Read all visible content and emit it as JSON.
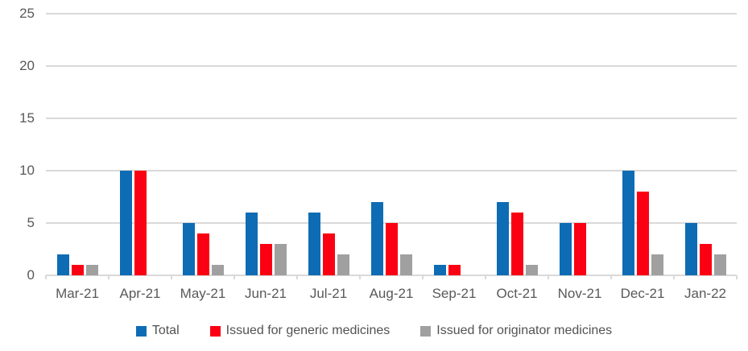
{
  "chart_data": {
    "type": "bar",
    "title": "",
    "xlabel": "",
    "ylabel": "",
    "categories": [
      "Mar-21",
      "Apr-21",
      "May-21",
      "Jun-21",
      "Jul-21",
      "Aug-21",
      "Sep-21",
      "Oct-21",
      "Nov-21",
      "Dec-21",
      "Jan-22"
    ],
    "series": [
      {
        "name": "Total",
        "color": "#0e6cb5",
        "values": [
          2,
          10,
          5,
          6,
          6,
          7,
          1,
          7,
          5,
          10,
          5
        ]
      },
      {
        "name": "Issued for generic medicines",
        "color": "#fb0012",
        "values": [
          1,
          10,
          4,
          3,
          4,
          5,
          1,
          6,
          5,
          8,
          3
        ]
      },
      {
        "name": "Issued for originator medicines",
        "color": "#a0a0a0",
        "values": [
          1,
          0,
          1,
          3,
          2,
          2,
          0,
          1,
          0,
          2,
          2
        ]
      }
    ],
    "ylim": [
      0,
      25
    ],
    "yticks": [
      0,
      5,
      10,
      15,
      20,
      25
    ],
    "grid": true,
    "legend_position": "bottom"
  },
  "style_colors": {
    "gridline": "#d9d9d9",
    "axis_text": "#595959",
    "legend_text": "#525252",
    "background": "#ffffff"
  }
}
